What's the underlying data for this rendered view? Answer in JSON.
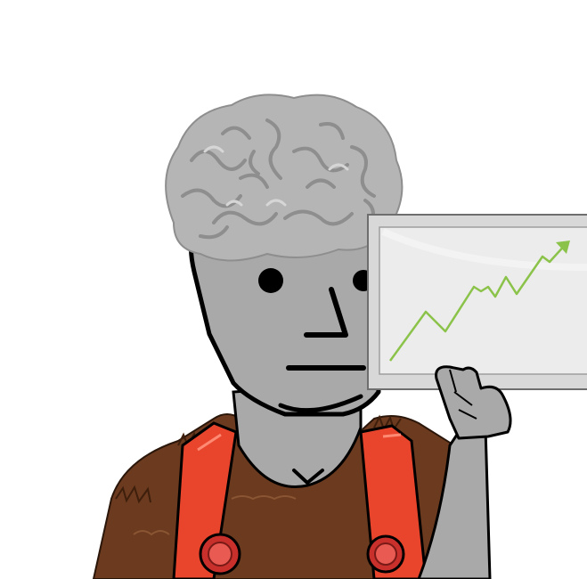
{
  "illustration": {
    "subject": "npc-character-holding-rising-chart",
    "icons": [
      "brain-icon",
      "trend-up-icon"
    ],
    "colors": {
      "background": "#ffffff",
      "skin": "#a9a9a9",
      "outline": "#000000",
      "brain": "#b5b5b5",
      "brain_fold": "#8e8e8e",
      "fur": "#6b3a1f",
      "overalls": "#e8452c",
      "button": "#c9302c",
      "chart_frame": "#d8d8d8",
      "chart_screen": "#ececec",
      "trend_line": "#8bc34a"
    }
  }
}
